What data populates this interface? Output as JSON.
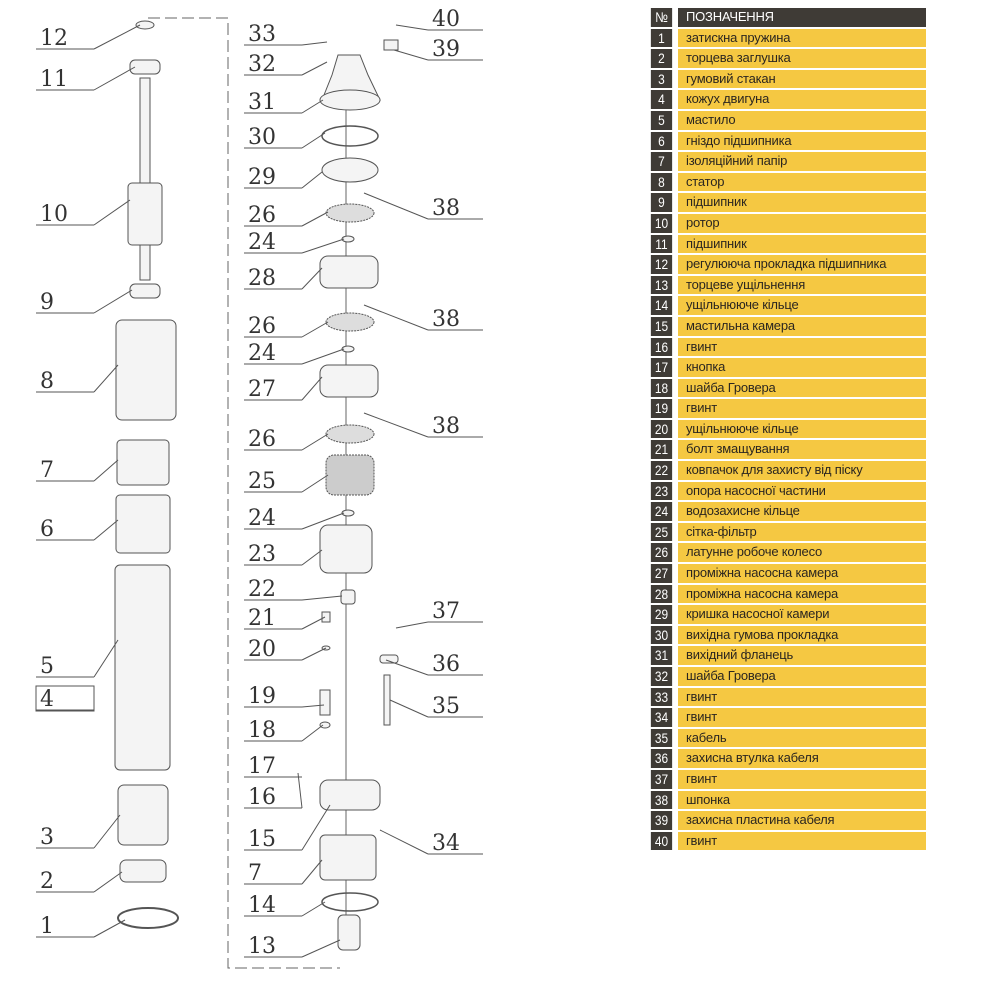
{
  "table": {
    "header": {
      "num": "№",
      "name": "ПОЗНАЧЕННЯ"
    },
    "rows": [
      {
        "num": "1",
        "name": "затискна пружина"
      },
      {
        "num": "2",
        "name": "торцева заглушка"
      },
      {
        "num": "3",
        "name": "гумовий стакан"
      },
      {
        "num": "4",
        "name": "кожух двигуна"
      },
      {
        "num": "5",
        "name": "мастило"
      },
      {
        "num": "6",
        "name": "гніздо підшипника"
      },
      {
        "num": "7",
        "name": "ізоляційний папір"
      },
      {
        "num": "8",
        "name": "статор"
      },
      {
        "num": "9",
        "name": "підшипник"
      },
      {
        "num": "10",
        "name": "ротор"
      },
      {
        "num": "11",
        "name": "підшипник"
      },
      {
        "num": "12",
        "name": "регулююча прокладка підшипника"
      },
      {
        "num": "13",
        "name": "торцеве ущільнення"
      },
      {
        "num": "14",
        "name": "ущільнююче кільце"
      },
      {
        "num": "15",
        "name": "мастильна камера"
      },
      {
        "num": "16",
        "name": "гвинт"
      },
      {
        "num": "17",
        "name": "кнопка"
      },
      {
        "num": "18",
        "name": "шайба Гровера"
      },
      {
        "num": "19",
        "name": "гвинт"
      },
      {
        "num": "20",
        "name": "ущільнююче кільце"
      },
      {
        "num": "21",
        "name": "болт змащування"
      },
      {
        "num": "22",
        "name": "ковпачок для захисту від піску"
      },
      {
        "num": "23",
        "name": "опора насосної частини"
      },
      {
        "num": "24",
        "name": "водозахисне кільце"
      },
      {
        "num": "25",
        "name": "сітка-фільтр"
      },
      {
        "num": "26",
        "name": "латунне робоче колесо"
      },
      {
        "num": "27",
        "name": "проміжна насосна камера"
      },
      {
        "num": "28",
        "name": "проміжна насосна камера"
      },
      {
        "num": "29",
        "name": "кришка насосної камери"
      },
      {
        "num": "30",
        "name": "вихідна гумова прокладка"
      },
      {
        "num": "31",
        "name": "вихідний фланець"
      },
      {
        "num": "32",
        "name": "шайба Гровера"
      },
      {
        "num": "33",
        "name": "гвинт"
      },
      {
        "num": "34",
        "name": "гвинт"
      },
      {
        "num": "35",
        "name": "кабель"
      },
      {
        "num": "36",
        "name": "захисна втулка кабеля"
      },
      {
        "num": "37",
        "name": "гвинт"
      },
      {
        "num": "38",
        "name": "шпонка"
      },
      {
        "num": "39",
        "name": "захисна пластина кабеля"
      },
      {
        "num": "40",
        "name": "гвинт"
      }
    ]
  },
  "callouts": {
    "left": [
      "12",
      "11",
      "10",
      "9",
      "8",
      "7",
      "6",
      "5",
      "4",
      "3",
      "2",
      "1"
    ],
    "middle": [
      "33",
      "32",
      "31",
      "30",
      "29",
      "26",
      "24",
      "28",
      "26",
      "24",
      "27",
      "26",
      "25",
      "24",
      "23",
      "22",
      "21",
      "20",
      "19",
      "18",
      "17",
      "16",
      "15",
      "7",
      "14",
      "13"
    ],
    "right": [
      "40",
      "39",
      "38",
      "38",
      "38",
      "37",
      "36",
      "35",
      "34"
    ]
  },
  "colors": {
    "header_bg": "#3f3b36",
    "row_bg": "#f5c842",
    "line": "#555555"
  }
}
